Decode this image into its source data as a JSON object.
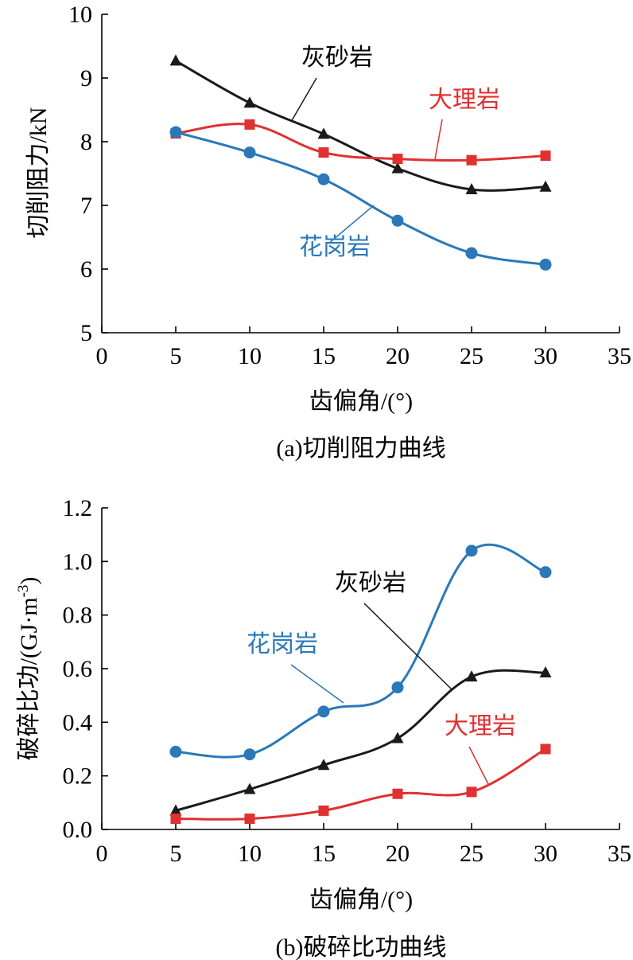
{
  "chart_data": [
    {
      "type": "line",
      "caption": "(a)切削阻力曲线",
      "xlabel": "齿偏角/(°)",
      "ylabel": "切削阻力/kN",
      "xlim": [
        0,
        35
      ],
      "ylim": [
        5,
        10
      ],
      "xticks": [
        "0",
        "5",
        "10",
        "15",
        "20",
        "25",
        "30",
        "35"
      ],
      "yticks": [
        "5",
        "6",
        "7",
        "8",
        "9",
        "10"
      ],
      "x": [
        5,
        10,
        15,
        20,
        25,
        30
      ],
      "series": [
        {
          "name": "灰砂岩",
          "color": "#1a1a1a",
          "marker": "triangle",
          "values": [
            9.27,
            8.61,
            8.12,
            7.58,
            7.25,
            7.29
          ]
        },
        {
          "name": "大理岩",
          "color": "#e03030",
          "marker": "square",
          "values": [
            8.13,
            8.27,
            7.83,
            7.73,
            7.71,
            7.78
          ]
        },
        {
          "name": "花岗岩",
          "color": "#2a78b8",
          "marker": "circle",
          "values": [
            8.15,
            7.83,
            7.41,
            6.76,
            6.25,
            6.07
          ]
        }
      ]
    },
    {
      "type": "line",
      "caption": "(b)破碎比功曲线",
      "xlabel": "齿偏角/(°)",
      "ylabel_main": "破碎比功/(GJ·m",
      "ylabel_sup": "-3",
      "ylabel_end": ")",
      "xlim": [
        0,
        35
      ],
      "ylim": [
        0,
        1.2
      ],
      "xticks": [
        "0",
        "5",
        "10",
        "15",
        "20",
        "25",
        "30",
        "35"
      ],
      "yticks": [
        "0.0",
        "0.2",
        "0.4",
        "0.6",
        "0.8",
        "1.0",
        "1.2"
      ],
      "x": [
        5,
        10,
        15,
        20,
        25,
        30
      ],
      "series": [
        {
          "name": "灰砂岩",
          "color": "#1a1a1a",
          "marker": "triangle",
          "values": [
            0.07,
            0.15,
            0.24,
            0.34,
            0.57,
            0.585
          ]
        },
        {
          "name": "大理岩",
          "color": "#e03030",
          "marker": "square",
          "values": [
            0.04,
            0.04,
            0.07,
            0.133,
            0.14,
            0.3
          ]
        },
        {
          "name": "花岗岩",
          "color": "#2a78b8",
          "marker": "circle",
          "values": [
            0.29,
            0.28,
            0.44,
            0.53,
            1.04,
            0.96
          ]
        }
      ]
    }
  ]
}
